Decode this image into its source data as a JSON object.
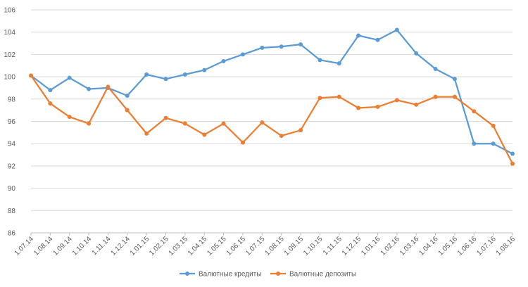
{
  "chart_data": {
    "type": "line",
    "title": "",
    "xlabel": "",
    "ylabel": "",
    "ylim": [
      86,
      106
    ],
    "yticks": [
      86,
      88,
      90,
      92,
      94,
      96,
      98,
      100,
      102,
      104,
      106
    ],
    "grid": "horizontal",
    "legend_position": "bottom",
    "categories": [
      "1.07.14",
      "1.08.14",
      "1.09.14",
      "1.10.14",
      "1.11.14",
      "1.12.14",
      "1.01.15",
      "1.02.15",
      "1.03.15",
      "1.04.15",
      "1.05.15",
      "1.06.15",
      "1.07.15",
      "1.08.15",
      "1.09.15",
      "1.10.15",
      "1.11.15",
      "1.12.15",
      "1.01.16",
      "1.02.16",
      "1.03.16",
      "1.04.16",
      "1.05.16",
      "1.06.16",
      "1.07.16",
      "1.08.16"
    ],
    "series": [
      {
        "name": "Валютные кредиты",
        "color": "#5b9bd5",
        "values": [
          100.1,
          98.8,
          99.9,
          98.9,
          99.0,
          98.3,
          100.2,
          99.8,
          100.2,
          100.6,
          101.4,
          102.0,
          102.6,
          102.7,
          102.9,
          101.5,
          101.2,
          103.7,
          103.3,
          104.2,
          102.1,
          100.7,
          99.8,
          94.0,
          94.0,
          93.1
        ]
      },
      {
        "name": "Валютные депозиты",
        "color": "#ed7d31",
        "values": [
          100.1,
          97.6,
          96.4,
          95.8,
          99.1,
          97.0,
          94.9,
          96.3,
          95.8,
          94.8,
          95.8,
          94.1,
          95.9,
          94.7,
          95.2,
          98.1,
          98.2,
          97.2,
          97.3,
          97.9,
          97.5,
          98.2,
          98.2,
          96.9,
          95.6,
          92.2
        ]
      }
    ]
  }
}
